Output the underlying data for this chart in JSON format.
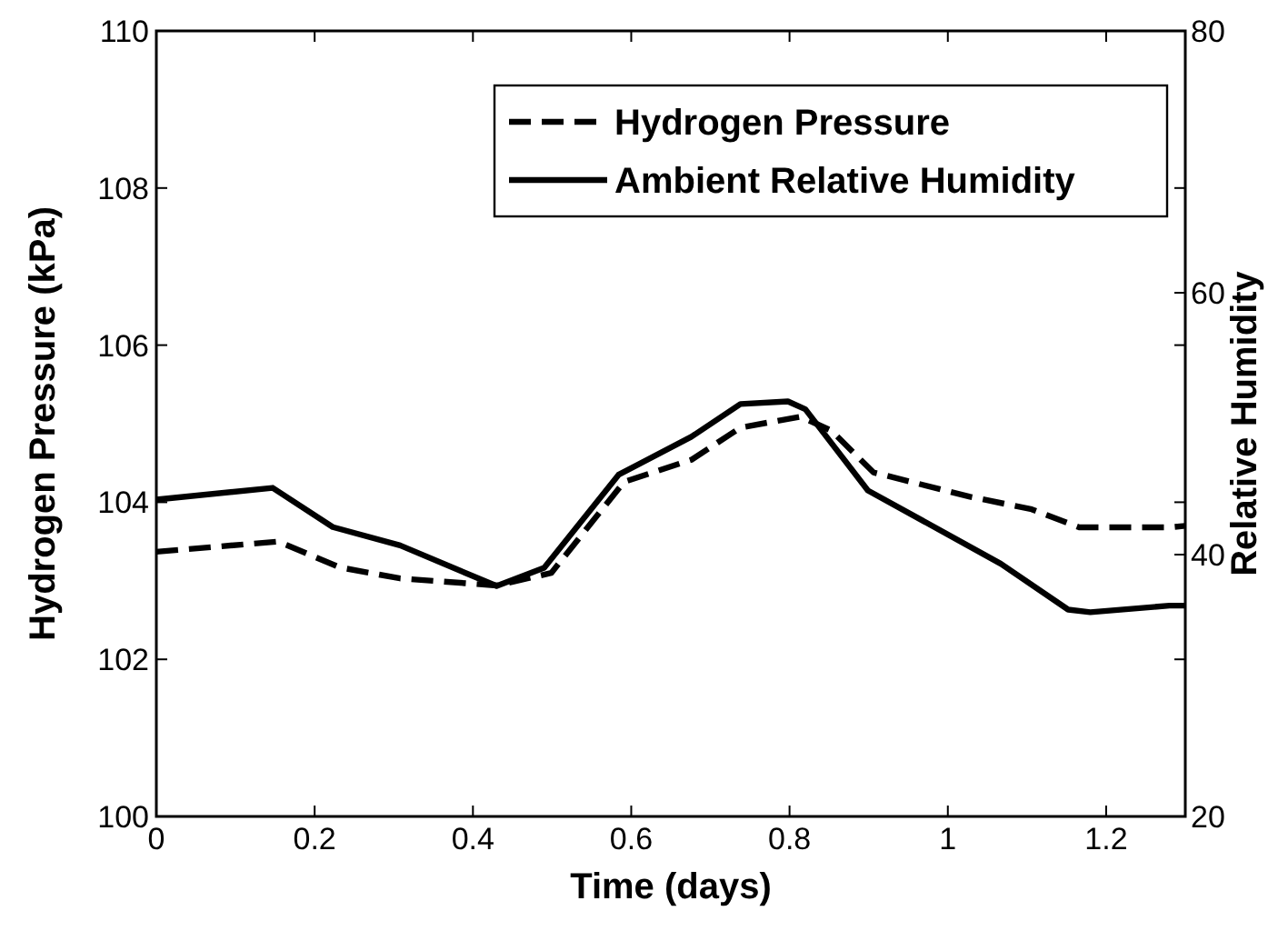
{
  "chart_data": {
    "type": "line",
    "xlabel": "Time (days)",
    "ylabel": "Hydrogen Pressure (kPa)",
    "y2label": "Relative Humidity",
    "xlim": [
      0,
      1.3
    ],
    "xticks": [
      0,
      0.2,
      0.4,
      0.6,
      0.8,
      1,
      1.2
    ],
    "ylim": [
      100,
      110
    ],
    "yticks": [
      100,
      102,
      104,
      106,
      108,
      110
    ],
    "y2lim": [
      20,
      80
    ],
    "y2ticks": [
      20,
      40,
      60,
      80
    ],
    "legend": "top right",
    "grid": false,
    "series": [
      {
        "name": "Hydrogen Pressure",
        "color": "#000000",
        "line_style": "dashed",
        "x": [
          0,
          0.154,
          0.232,
          0.308,
          0.43,
          0.499,
          0.591,
          0.676,
          0.738,
          0.814,
          0.853,
          0.906,
          1.028,
          1.106,
          1.166,
          1.28,
          1.3
        ],
        "values": [
          103.37,
          103.5,
          103.17,
          103.03,
          102.94,
          103.1,
          104.26,
          104.54,
          104.95,
          105.09,
          104.91,
          104.38,
          104.07,
          103.91,
          103.68,
          103.68,
          103.7
        ]
      },
      {
        "name": "Ambient Relative Humidity",
        "color": "#000000",
        "line_style": "solid",
        "axis": "y2",
        "x": [
          0,
          0.147,
          0.223,
          0.308,
          0.43,
          0.49,
          0.584,
          0.676,
          0.738,
          0.798,
          0.82,
          0.899,
          1.067,
          1.152,
          1.18,
          1.28,
          1.3
        ],
        "values": [
          44.2,
          45.1,
          42.1,
          40.7,
          37.6,
          39,
          46.1,
          49,
          51.5,
          51.7,
          51.1,
          44.9,
          39.3,
          35.8,
          35.6,
          36.1,
          36.1
        ]
      }
    ]
  }
}
